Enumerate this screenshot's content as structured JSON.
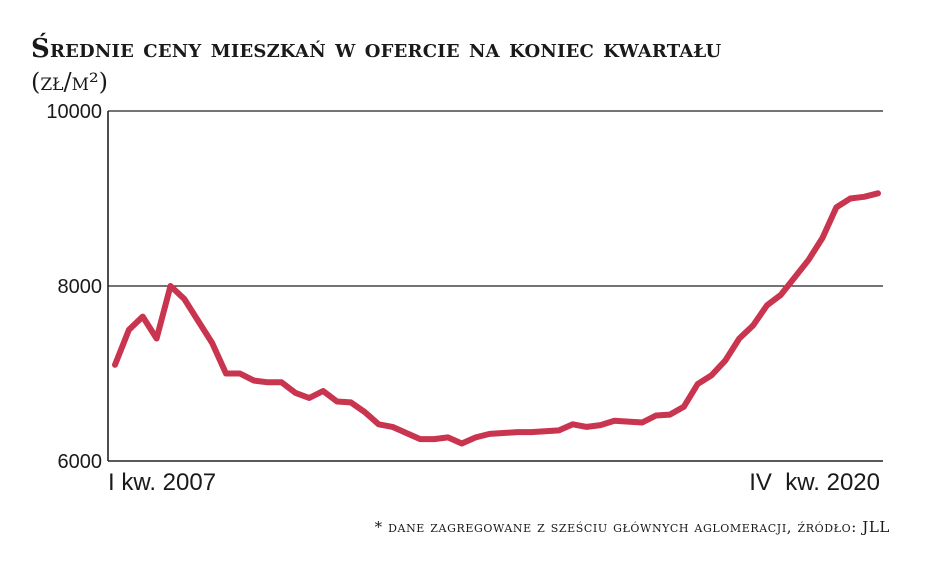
{
  "header": {
    "title": "Średnie ceny mieszkań w ofercie na koniec kwartału",
    "unit": "(zł/m²)"
  },
  "footnote": "* dane zagregowane z sześciu głównych aglomeracji, źródło: JLL",
  "colors": {
    "line": "#c9344f",
    "axis": "#222222"
  },
  "chart_data": {
    "type": "line",
    "title": "Średnie ceny mieszkań w ofercie na koniec kwartału",
    "ylabel": "(zł/m²)",
    "ylim": [
      6000,
      10000
    ],
    "yticks": [
      "10000",
      "8000",
      "6000"
    ],
    "grid": "horizontal at 8000 and 10000",
    "x_start_label": "I kw. 2007",
    "x_end_label": "IV  kw. 2020",
    "series": [
      {
        "values": [
          7100,
          7500,
          7650,
          7400,
          8000,
          7850,
          7600,
          7350,
          7000,
          7000,
          6920,
          6900,
          6900,
          6780,
          6720,
          6800,
          6680,
          6670,
          6560,
          6420,
          6390,
          6320,
          6250,
          6250,
          6270,
          6200,
          6270,
          6310,
          6320,
          6330,
          6330,
          6340,
          6350,
          6420,
          6390,
          6410,
          6460,
          6450,
          6440,
          6520,
          6530,
          6620,
          6880,
          6980,
          7150,
          7400,
          7550,
          7780,
          7900,
          8100,
          8300,
          8550,
          8900,
          9000,
          9020,
          9060
        ]
      }
    ]
  }
}
